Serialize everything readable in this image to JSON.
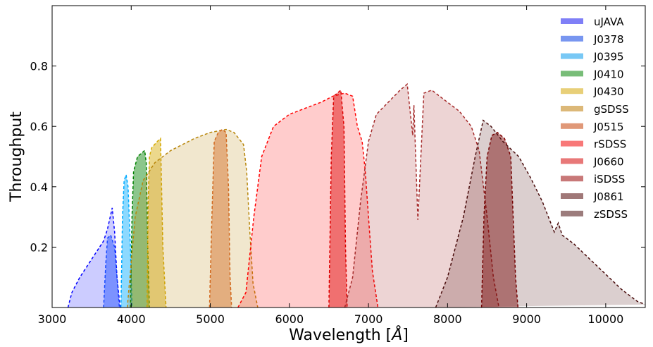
{
  "chart_data": {
    "type": "area",
    "title": "",
    "xlabel": "Wavelength [",
    "xlabel_unit": "Å",
    "xlabel_close": "]",
    "ylabel": "Throughput",
    "xlim": [
      3000,
      10500
    ],
    "ylim": [
      0,
      1.0
    ],
    "xticks": [
      3000,
      4000,
      5000,
      6000,
      7000,
      8000,
      9000,
      10000
    ],
    "yticks": [
      0.2,
      0.4,
      0.6,
      0.8
    ],
    "xtick_labels": [
      "3000",
      "4000",
      "5000",
      "6000",
      "7000",
      "8000",
      "9000",
      "10000"
    ],
    "ytick_labels": [
      "0.2",
      "0.4",
      "0.6",
      "0.8"
    ],
    "grid": false,
    "legend_position": "top-right",
    "series": [
      {
        "name": "uJAVA",
        "color": "#0000ff",
        "legend_color": "#7f7ff7",
        "fill_opacity": 0.2,
        "points": [
          [
            3200,
            0
          ],
          [
            3250,
            0.05
          ],
          [
            3350,
            0.1
          ],
          [
            3450,
            0.14
          ],
          [
            3550,
            0.18
          ],
          [
            3650,
            0.22
          ],
          [
            3700,
            0.26
          ],
          [
            3760,
            0.33
          ],
          [
            3790,
            0.25
          ],
          [
            3820,
            0.1
          ],
          [
            3860,
            0
          ]
        ]
      },
      {
        "name": "J0378",
        "color": "#1a4cff",
        "legend_color": "#7896f0",
        "fill_opacity": 0.45,
        "points": [
          [
            3650,
            0
          ],
          [
            3680,
            0.15
          ],
          [
            3700,
            0.23
          ],
          [
            3740,
            0.24
          ],
          [
            3790,
            0.2
          ],
          [
            3820,
            0.1
          ],
          [
            3850,
            0
          ]
        ]
      },
      {
        "name": "J0395",
        "color": "#00aaff",
        "legend_color": "#78c8f5",
        "fill_opacity": 0.45,
        "points": [
          [
            3870,
            0
          ],
          [
            3890,
            0.3
          ],
          [
            3910,
            0.42
          ],
          [
            3935,
            0.44
          ],
          [
            3960,
            0.4
          ],
          [
            3990,
            0.2
          ],
          [
            4010,
            0
          ]
        ]
      },
      {
        "name": "J0410",
        "color": "#008000",
        "legend_color": "#78bd78",
        "fill_opacity": 0.45,
        "points": [
          [
            3990,
            0
          ],
          [
            4010,
            0.3
          ],
          [
            4030,
            0.45
          ],
          [
            4080,
            0.5
          ],
          [
            4170,
            0.52
          ],
          [
            4190,
            0.48
          ],
          [
            4210,
            0.2
          ],
          [
            4230,
            0
          ]
        ]
      },
      {
        "name": "J0430",
        "color": "#d4a800",
        "legend_color": "#e8cf78",
        "fill_opacity": 0.45,
        "points": [
          [
            4200,
            0
          ],
          [
            4215,
            0.35
          ],
          [
            4230,
            0.5
          ],
          [
            4260,
            0.53
          ],
          [
            4330,
            0.55
          ],
          [
            4370,
            0.56
          ],
          [
            4380,
            0.45
          ],
          [
            4400,
            0.2
          ],
          [
            4440,
            0
          ]
        ]
      },
      {
        "name": "gSDSS",
        "color": "#b8860b",
        "legend_color": "#dcb878",
        "fill_opacity": 0.2,
        "points": [
          [
            3950,
            0
          ],
          [
            4000,
            0.15
          ],
          [
            4050,
            0.3
          ],
          [
            4150,
            0.42
          ],
          [
            4300,
            0.48
          ],
          [
            4500,
            0.52
          ],
          [
            4800,
            0.56
          ],
          [
            5000,
            0.58
          ],
          [
            5200,
            0.59
          ],
          [
            5300,
            0.58
          ],
          [
            5420,
            0.54
          ],
          [
            5460,
            0.45
          ],
          [
            5500,
            0.25
          ],
          [
            5540,
            0.08
          ],
          [
            5600,
            0
          ]
        ]
      },
      {
        "name": "J0515",
        "color": "#d2691e",
        "legend_color": "#e09878",
        "fill_opacity": 0.45,
        "points": [
          [
            4990,
            0
          ],
          [
            5020,
            0.3
          ],
          [
            5050,
            0.55
          ],
          [
            5100,
            0.58
          ],
          [
            5150,
            0.59
          ],
          [
            5200,
            0.58
          ],
          [
            5230,
            0.4
          ],
          [
            5250,
            0.1
          ],
          [
            5270,
            0
          ]
        ]
      },
      {
        "name": "rSDSS",
        "color": "#ff0000",
        "legend_color": "#f87878",
        "fill_opacity": 0.2,
        "points": [
          [
            5350,
            0
          ],
          [
            5450,
            0.05
          ],
          [
            5550,
            0.3
          ],
          [
            5650,
            0.5
          ],
          [
            5800,
            0.6
          ],
          [
            6000,
            0.64
          ],
          [
            6200,
            0.66
          ],
          [
            6400,
            0.68
          ],
          [
            6550,
            0.7
          ],
          [
            6700,
            0.71
          ],
          [
            6800,
            0.7
          ],
          [
            6860,
            0.6
          ],
          [
            6920,
            0.55
          ],
          [
            6960,
            0.45
          ],
          [
            7000,
            0.3
          ],
          [
            7050,
            0.12
          ],
          [
            7120,
            0
          ]
        ]
      },
      {
        "name": "J0660",
        "color": "#dd0000",
        "legend_color": "#e87878",
        "fill_opacity": 0.45,
        "points": [
          [
            6500,
            0
          ],
          [
            6530,
            0.5
          ],
          [
            6560,
            0.7
          ],
          [
            6650,
            0.72
          ],
          [
            6690,
            0.6
          ],
          [
            6710,
            0.2
          ],
          [
            6730,
            0
          ]
        ]
      },
      {
        "name": "iSDSS",
        "color": "#a52a2a",
        "legend_color": "#c87878",
        "fill_opacity": 0.2,
        "points": [
          [
            6700,
            0
          ],
          [
            6800,
            0.1
          ],
          [
            6900,
            0.35
          ],
          [
            7000,
            0.55
          ],
          [
            7100,
            0.64
          ],
          [
            7250,
            0.68
          ],
          [
            7400,
            0.72
          ],
          [
            7490,
            0.74
          ],
          [
            7560,
            0.57
          ],
          [
            7575,
            0.67
          ],
          [
            7625,
            0.29
          ],
          [
            7700,
            0.71
          ],
          [
            7800,
            0.72
          ],
          [
            8000,
            0.68
          ],
          [
            8150,
            0.65
          ],
          [
            8300,
            0.6
          ],
          [
            8400,
            0.52
          ],
          [
            8500,
            0.3
          ],
          [
            8580,
            0.1
          ],
          [
            8650,
            0
          ]
        ]
      },
      {
        "name": "J0861",
        "color": "#800000",
        "legend_color": "#a07878",
        "fill_opacity": 0.45,
        "points": [
          [
            8430,
            0
          ],
          [
            8460,
            0.3
          ],
          [
            8500,
            0.5
          ],
          [
            8560,
            0.57
          ],
          [
            8630,
            0.58
          ],
          [
            8720,
            0.56
          ],
          [
            8800,
            0.5
          ],
          [
            8830,
            0.3
          ],
          [
            8860,
            0.1
          ],
          [
            8890,
            0
          ]
        ]
      },
      {
        "name": "zSDSS",
        "color": "#4a0d0d",
        "legend_color": "#9c7c7c",
        "fill_opacity": 0.2,
        "points": [
          [
            7850,
            0
          ],
          [
            8000,
            0.1
          ],
          [
            8200,
            0.3
          ],
          [
            8350,
            0.5
          ],
          [
            8450,
            0.62
          ],
          [
            8550,
            0.6
          ],
          [
            8700,
            0.55
          ],
          [
            8900,
            0.5
          ],
          [
            9050,
            0.43
          ],
          [
            9200,
            0.35
          ],
          [
            9350,
            0.25
          ],
          [
            9400,
            0.28
          ],
          [
            9450,
            0.24
          ],
          [
            9600,
            0.21
          ],
          [
            9800,
            0.16
          ],
          [
            10000,
            0.11
          ],
          [
            10200,
            0.06
          ],
          [
            10400,
            0.02
          ],
          [
            10500,
            0.01
          ]
        ]
      }
    ]
  }
}
